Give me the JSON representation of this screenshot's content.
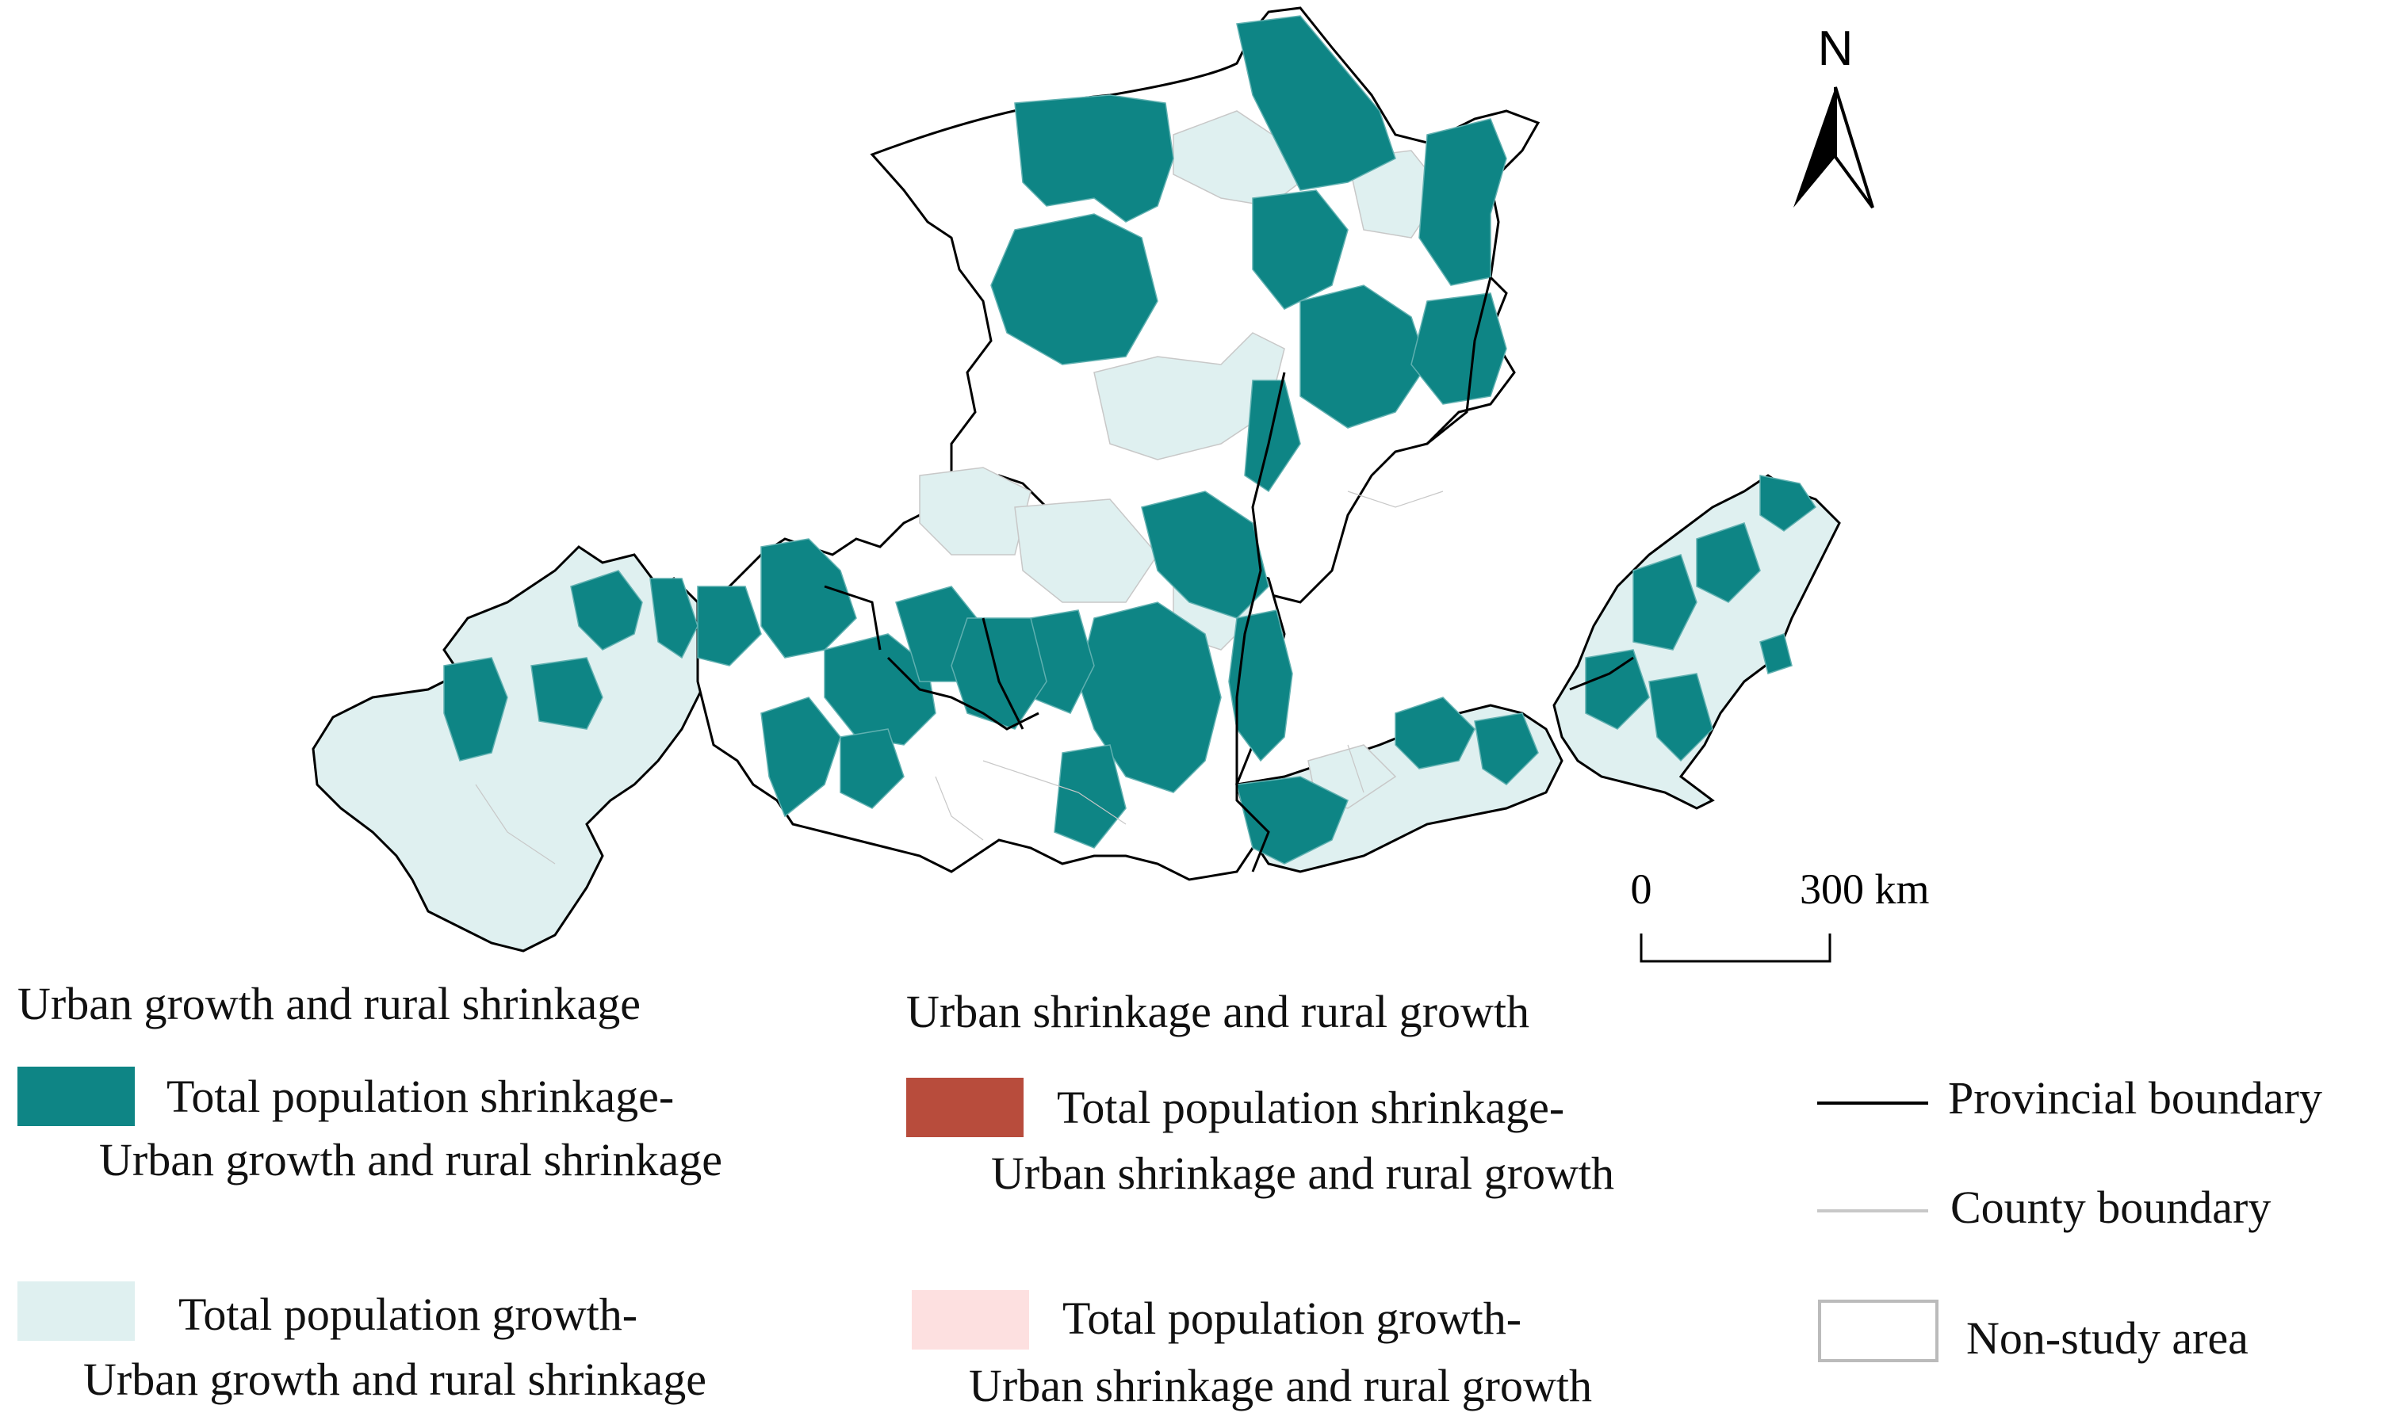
{
  "north_arrow": {
    "label": "N"
  },
  "scale_bar": {
    "start_label": "0",
    "end_label": "300 km"
  },
  "legend": {
    "group_left_title": "Urban growth and rural shrinkage",
    "group_right_title": "Urban shrinkage and rural growth",
    "items": [
      {
        "line1": "Total population shrinkage-",
        "line2": "Urban growth and rural shrinkage",
        "color": "#0e8585"
      },
      {
        "line1": "Total population growth-",
        "line2": "Urban growth and rural shrinkage",
        "color": "#dff0f0"
      },
      {
        "line1": "Total population shrinkage-",
        "line2": "Urban shrinkage and rural growth",
        "color": "#b84c3c"
      },
      {
        "line1": "Total population growth-",
        "line2": "Urban shrinkage and rural growth",
        "color": "#fde0e0"
      }
    ],
    "provincial_boundary": "Provincial boundary",
    "county_boundary": "County boundary",
    "non_study_area": "Non-study area"
  },
  "colors": {
    "shrink_urban_growth": "#0e8585",
    "growth_urban_growth": "#dff0f0",
    "provincial_boundary": "#000000",
    "county_boundary": "#c8c8c8",
    "non_study": "#ffffff"
  }
}
